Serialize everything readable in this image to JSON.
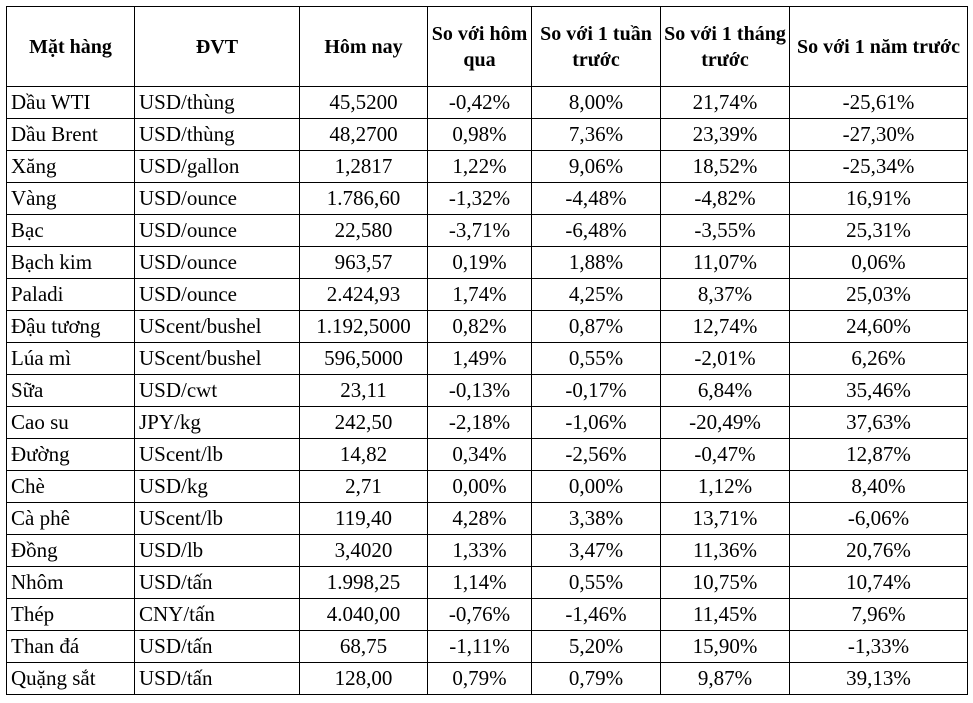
{
  "headers": {
    "item": "Mặt hàng",
    "unit": "ĐVT",
    "today": "Hôm nay",
    "vs_yesterday": "So với hôm qua",
    "vs_week": "So với 1 tuần trước",
    "vs_month": "So với 1 tháng trước",
    "vs_year": "So với 1 năm trước"
  },
  "rows": [
    {
      "item": "Dầu WTI",
      "unit": "USD/thùng",
      "today": "45,5200",
      "d": "-0,42%",
      "w": "8,00%",
      "m": "21,74%",
      "y": "-25,61%"
    },
    {
      "item": "Dầu Brent",
      "unit": "USD/thùng",
      "today": "48,2700",
      "d": "0,98%",
      "w": "7,36%",
      "m": "23,39%",
      "y": "-27,30%"
    },
    {
      "item": "Xăng",
      "unit": "USD/gallon",
      "today": "1,2817",
      "d": "1,22%",
      "w": "9,06%",
      "m": "18,52%",
      "y": "-25,34%"
    },
    {
      "item": "Vàng",
      "unit": "USD/ounce",
      "today": "1.786,60",
      "d": "-1,32%",
      "w": "-4,48%",
      "m": "-4,82%",
      "y": "16,91%"
    },
    {
      "item": "Bạc",
      "unit": "USD/ounce",
      "today": "22,580",
      "d": "-3,71%",
      "w": "-6,48%",
      "m": "-3,55%",
      "y": "25,31%"
    },
    {
      "item": "Bạch kim",
      "unit": "USD/ounce",
      "today": "963,57",
      "d": "0,19%",
      "w": "1,88%",
      "m": "11,07%",
      "y": "0,06%"
    },
    {
      "item": "Paladi",
      "unit": "USD/ounce",
      "today": "2.424,93",
      "d": "1,74%",
      "w": "4,25%",
      "m": "8,37%",
      "y": "25,03%"
    },
    {
      "item": "Đậu tương",
      "unit": "UScent/bushel",
      "today": "1.192,5000",
      "d": "0,82%",
      "w": "0,87%",
      "m": "12,74%",
      "y": "24,60%"
    },
    {
      "item": "Lúa mì",
      "unit": "UScent/bushel",
      "today": "596,5000",
      "d": "1,49%",
      "w": "0,55%",
      "m": "-2,01%",
      "y": "6,26%"
    },
    {
      "item": "Sữa",
      "unit": "USD/cwt",
      "today": "23,11",
      "d": "-0,13%",
      "w": "-0,17%",
      "m": "6,84%",
      "y": "35,46%"
    },
    {
      "item": "Cao su",
      "unit": "JPY/kg",
      "today": "242,50",
      "d": "-2,18%",
      "w": "-1,06%",
      "m": "-20,49%",
      "y": "37,63%"
    },
    {
      "item": "Đường",
      "unit": "UScent/lb",
      "today": "14,82",
      "d": "0,34%",
      "w": "-2,56%",
      "m": "-0,47%",
      "y": "12,87%"
    },
    {
      "item": "Chè",
      "unit": "USD/kg",
      "today": "2,71",
      "d": "0,00%",
      "w": "0,00%",
      "m": "1,12%",
      "y": "8,40%"
    },
    {
      "item": "Cà phê",
      "unit": "UScent/lb",
      "today": "119,40",
      "d": "4,28%",
      "w": "3,38%",
      "m": "13,71%",
      "y": "-6,06%"
    },
    {
      "item": "Đồng",
      "unit": "USD/lb",
      "today": "3,4020",
      "d": "1,33%",
      "w": "3,47%",
      "m": "11,36%",
      "y": "20,76%"
    },
    {
      "item": "Nhôm",
      "unit": "USD/tấn",
      "today": "1.998,25",
      "d": "1,14%",
      "w": "0,55%",
      "m": "10,75%",
      "y": "10,74%"
    },
    {
      "item": "Thép",
      "unit": "CNY/tấn",
      "today": "4.040,00",
      "d": "-0,76%",
      "w": "-1,46%",
      "m": "11,45%",
      "y": "7,96%"
    },
    {
      "item": "Than đá",
      "unit": "USD/tấn",
      "today": "68,75",
      "d": "-1,11%",
      "w": "5,20%",
      "m": "15,90%",
      "y": "-1,33%"
    },
    {
      "item": "Quặng sắt",
      "unit": "USD/tấn",
      "today": "128,00",
      "d": "0,79%",
      "w": "0,79%",
      "m": "9,87%",
      "y": "39,13%"
    }
  ]
}
